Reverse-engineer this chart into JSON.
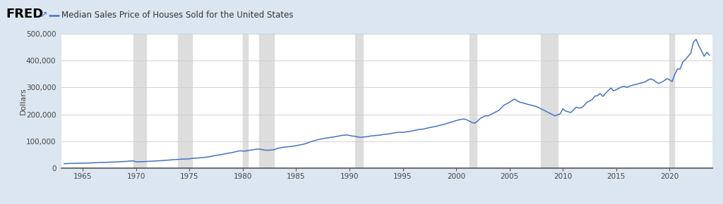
{
  "title": "Median Sales Price of Houses Sold for the United States",
  "ylabel": "Dollars",
  "line_color": "#4472C4",
  "outer_bg": "#dce6f0",
  "plot_bg": "#ffffff",
  "recession_color": "#dddddd",
  "recessions": [
    [
      1969.75,
      1970.917
    ],
    [
      1973.917,
      1975.25
    ],
    [
      1980.0,
      1980.5
    ],
    [
      1981.5,
      1982.917
    ],
    [
      1990.5,
      1991.25
    ],
    [
      2001.25,
      2001.917
    ],
    [
      2007.917,
      2009.5
    ],
    [
      2020.0,
      2020.417
    ]
  ],
  "xlim": [
    1963.0,
    2024.0
  ],
  "ylim": [
    0,
    500000
  ],
  "yticks": [
    0,
    100000,
    200000,
    300000,
    400000,
    500000
  ],
  "ytick_labels": [
    "0",
    "100,000",
    "200,000",
    "300,000",
    "400,000",
    "500,000"
  ],
  "xticks": [
    1965,
    1970,
    1975,
    1980,
    1985,
    1990,
    1995,
    2000,
    2005,
    2010,
    2015,
    2020
  ],
  "data": [
    [
      1963.25,
      17200
    ],
    [
      1963.5,
      17500
    ],
    [
      1963.75,
      18100
    ],
    [
      1964.0,
      18200
    ],
    [
      1964.25,
      18400
    ],
    [
      1964.5,
      18500
    ],
    [
      1964.75,
      19000
    ],
    [
      1965.0,
      18900
    ],
    [
      1965.25,
      19200
    ],
    [
      1965.5,
      19500
    ],
    [
      1965.75,
      20200
    ],
    [
      1966.0,
      20400
    ],
    [
      1966.25,
      21000
    ],
    [
      1966.5,
      21500
    ],
    [
      1966.75,
      22000
    ],
    [
      1967.0,
      21600
    ],
    [
      1967.25,
      22400
    ],
    [
      1967.5,
      22700
    ],
    [
      1967.75,
      23200
    ],
    [
      1968.0,
      23400
    ],
    [
      1968.25,
      24000
    ],
    [
      1968.5,
      24500
    ],
    [
      1968.75,
      25000
    ],
    [
      1969.0,
      25500
    ],
    [
      1969.25,
      26300
    ],
    [
      1969.5,
      27000
    ],
    [
      1969.75,
      27500
    ],
    [
      1970.0,
      23900
    ],
    [
      1970.25,
      24100
    ],
    [
      1970.5,
      24500
    ],
    [
      1970.75,
      25000
    ],
    [
      1971.0,
      25700
    ],
    [
      1971.25,
      26100
    ],
    [
      1971.5,
      26500
    ],
    [
      1971.75,
      27200
    ],
    [
      1972.0,
      27600
    ],
    [
      1972.25,
      28100
    ],
    [
      1972.5,
      28700
    ],
    [
      1972.75,
      29500
    ],
    [
      1973.0,
      30300
    ],
    [
      1973.25,
      31200
    ],
    [
      1973.5,
      32000
    ],
    [
      1973.75,
      32800
    ],
    [
      1974.0,
      33200
    ],
    [
      1974.25,
      33800
    ],
    [
      1974.5,
      34500
    ],
    [
      1974.75,
      35000
    ],
    [
      1975.0,
      35300
    ],
    [
      1975.25,
      37000
    ],
    [
      1975.5,
      37500
    ],
    [
      1975.75,
      38200
    ],
    [
      1976.0,
      39000
    ],
    [
      1976.25,
      40000
    ],
    [
      1976.5,
      41200
    ],
    [
      1976.75,
      42400
    ],
    [
      1977.0,
      44000
    ],
    [
      1977.25,
      46500
    ],
    [
      1977.5,
      48000
    ],
    [
      1977.75,
      49500
    ],
    [
      1978.0,
      51000
    ],
    [
      1978.25,
      53000
    ],
    [
      1978.5,
      55000
    ],
    [
      1978.75,
      57000
    ],
    [
      1979.0,
      58000
    ],
    [
      1979.25,
      61000
    ],
    [
      1979.5,
      63000
    ],
    [
      1979.75,
      65000
    ],
    [
      1980.0,
      64000
    ],
    [
      1980.25,
      64500
    ],
    [
      1980.5,
      66000
    ],
    [
      1980.75,
      68000
    ],
    [
      1981.0,
      69000
    ],
    [
      1981.25,
      71000
    ],
    [
      1981.5,
      71500
    ],
    [
      1981.75,
      70000
    ],
    [
      1982.0,
      68000
    ],
    [
      1982.25,
      67000
    ],
    [
      1982.5,
      67500
    ],
    [
      1982.75,
      68000
    ],
    [
      1983.0,
      70000
    ],
    [
      1983.25,
      74000
    ],
    [
      1983.5,
      76000
    ],
    [
      1983.75,
      78000
    ],
    [
      1984.0,
      79000
    ],
    [
      1984.25,
      80000
    ],
    [
      1984.5,
      81000
    ],
    [
      1984.75,
      82000
    ],
    [
      1985.0,
      84000
    ],
    [
      1985.25,
      86000
    ],
    [
      1985.5,
      88000
    ],
    [
      1985.75,
      90000
    ],
    [
      1986.0,
      93000
    ],
    [
      1986.25,
      97000
    ],
    [
      1986.5,
      100000
    ],
    [
      1986.75,
      103000
    ],
    [
      1987.0,
      106000
    ],
    [
      1987.25,
      108000
    ],
    [
      1987.5,
      110000
    ],
    [
      1987.75,
      112000
    ],
    [
      1988.0,
      113000
    ],
    [
      1988.25,
      115000
    ],
    [
      1988.5,
      116000
    ],
    [
      1988.75,
      118000
    ],
    [
      1989.0,
      120000
    ],
    [
      1989.25,
      122000
    ],
    [
      1989.5,
      123000
    ],
    [
      1989.75,
      124000
    ],
    [
      1990.0,
      122000
    ],
    [
      1990.25,
      120000
    ],
    [
      1990.5,
      119000
    ],
    [
      1990.75,
      117000
    ],
    [
      1991.0,
      115000
    ],
    [
      1991.25,
      116000
    ],
    [
      1991.5,
      117000
    ],
    [
      1991.75,
      118000
    ],
    [
      1992.0,
      120000
    ],
    [
      1992.25,
      121000
    ],
    [
      1992.5,
      122000
    ],
    [
      1992.75,
      123000
    ],
    [
      1993.0,
      124000
    ],
    [
      1993.25,
      126000
    ],
    [
      1993.5,
      127000
    ],
    [
      1993.75,
      128000
    ],
    [
      1994.0,
      130000
    ],
    [
      1994.25,
      132000
    ],
    [
      1994.5,
      133000
    ],
    [
      1994.75,
      134000
    ],
    [
      1995.0,
      133000
    ],
    [
      1995.25,
      135000
    ],
    [
      1995.5,
      136000
    ],
    [
      1995.75,
      138000
    ],
    [
      1996.0,
      140000
    ],
    [
      1996.25,
      142000
    ],
    [
      1996.5,
      144000
    ],
    [
      1996.75,
      145000
    ],
    [
      1997.0,
      146000
    ],
    [
      1997.25,
      149000
    ],
    [
      1997.5,
      151000
    ],
    [
      1997.75,
      153000
    ],
    [
      1998.0,
      155000
    ],
    [
      1998.25,
      157000
    ],
    [
      1998.5,
      160000
    ],
    [
      1998.75,
      162000
    ],
    [
      1999.0,
      165000
    ],
    [
      1999.25,
      168000
    ],
    [
      1999.5,
      171000
    ],
    [
      1999.75,
      174000
    ],
    [
      2000.0,
      177000
    ],
    [
      2000.25,
      180000
    ],
    [
      2000.5,
      182000
    ],
    [
      2000.75,
      183000
    ],
    [
      2001.0,
      180000
    ],
    [
      2001.25,
      175000
    ],
    [
      2001.5,
      170000
    ],
    [
      2001.75,
      168000
    ],
    [
      2002.0,
      175000
    ],
    [
      2002.25,
      185000
    ],
    [
      2002.5,
      190000
    ],
    [
      2002.75,
      195000
    ],
    [
      2003.0,
      195000
    ],
    [
      2003.25,
      200000
    ],
    [
      2003.5,
      205000
    ],
    [
      2003.75,
      210000
    ],
    [
      2004.0,
      215000
    ],
    [
      2004.25,
      225000
    ],
    [
      2004.5,
      235000
    ],
    [
      2004.75,
      240000
    ],
    [
      2005.0,
      245000
    ],
    [
      2005.25,
      252000
    ],
    [
      2005.5,
      257000
    ],
    [
      2005.75,
      250000
    ],
    [
      2006.0,
      245000
    ],
    [
      2006.25,
      243000
    ],
    [
      2006.5,
      240000
    ],
    [
      2006.75,
      237000
    ],
    [
      2007.0,
      235000
    ],
    [
      2007.25,
      232000
    ],
    [
      2007.5,
      230000
    ],
    [
      2007.75,
      225000
    ],
    [
      2008.0,
      220000
    ],
    [
      2008.25,
      215000
    ],
    [
      2008.5,
      210000
    ],
    [
      2008.75,
      205000
    ],
    [
      2009.0,
      200000
    ],
    [
      2009.25,
      195000
    ],
    [
      2009.5,
      198000
    ],
    [
      2009.75,
      202000
    ],
    [
      2010.0,
      221000
    ],
    [
      2010.25,
      213000
    ],
    [
      2010.5,
      210000
    ],
    [
      2010.75,
      207000
    ],
    [
      2011.0,
      217000
    ],
    [
      2011.25,
      227000
    ],
    [
      2011.5,
      224000
    ],
    [
      2011.75,
      225000
    ],
    [
      2012.0,
      233000
    ],
    [
      2012.25,
      245000
    ],
    [
      2012.5,
      250000
    ],
    [
      2012.75,
      255000
    ],
    [
      2013.0,
      268000
    ],
    [
      2013.25,
      270000
    ],
    [
      2013.5,
      278000
    ],
    [
      2013.75,
      267000
    ],
    [
      2014.0,
      278000
    ],
    [
      2014.25,
      288000
    ],
    [
      2014.5,
      298000
    ],
    [
      2014.75,
      288000
    ],
    [
      2015.0,
      292000
    ],
    [
      2015.25,
      297000
    ],
    [
      2015.5,
      302000
    ],
    [
      2015.75,
      305000
    ],
    [
      2016.0,
      300000
    ],
    [
      2016.25,
      305000
    ],
    [
      2016.5,
      308000
    ],
    [
      2016.75,
      311000
    ],
    [
      2017.0,
      313000
    ],
    [
      2017.25,
      316000
    ],
    [
      2017.5,
      318000
    ],
    [
      2017.75,
      322000
    ],
    [
      2018.0,
      328000
    ],
    [
      2018.25,
      332000
    ],
    [
      2018.5,
      328000
    ],
    [
      2018.75,
      320000
    ],
    [
      2019.0,
      315000
    ],
    [
      2019.25,
      320000
    ],
    [
      2019.5,
      325000
    ],
    [
      2019.75,
      333000
    ],
    [
      2020.0,
      329000
    ],
    [
      2020.25,
      322000
    ],
    [
      2020.5,
      349000
    ],
    [
      2020.75,
      369000
    ],
    [
      2021.0,
      369000
    ],
    [
      2021.25,
      395000
    ],
    [
      2021.5,
      404000
    ],
    [
      2021.75,
      416000
    ],
    [
      2022.0,
      428000
    ],
    [
      2022.25,
      469000
    ],
    [
      2022.5,
      479000
    ],
    [
      2022.75,
      455000
    ],
    [
      2023.0,
      436000
    ],
    [
      2023.25,
      416000
    ],
    [
      2023.5,
      431000
    ],
    [
      2023.75,
      420000
    ]
  ]
}
